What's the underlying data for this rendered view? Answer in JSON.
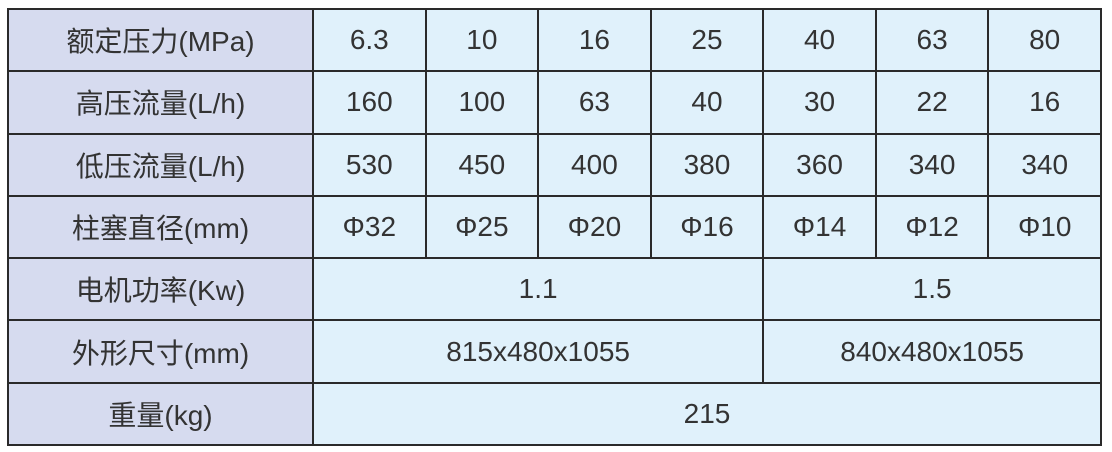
{
  "rows": [
    {
      "label": "额定压力(MPa)",
      "values": [
        "6.3",
        "10",
        "16",
        "25",
        "40",
        "63",
        "80"
      ]
    },
    {
      "label": "高压流量(L/h)",
      "values": [
        "160",
        "100",
        "63",
        "40",
        "30",
        "22",
        "16"
      ]
    },
    {
      "label": "低压流量(L/h)",
      "values": [
        "530",
        "450",
        "400",
        "380",
        "360",
        "340",
        "340"
      ]
    },
    {
      "label": "柱塞直径(mm)",
      "values": [
        "Φ32",
        "Φ25",
        "Φ20",
        "Φ16",
        "Φ14",
        "Φ12",
        "Φ10"
      ]
    }
  ],
  "motor_power": {
    "label": "电机功率(Kw)",
    "values": [
      "1.1",
      "1.5"
    ]
  },
  "dimensions": {
    "label": "外形尺寸(mm)",
    "values": [
      "815x480x1055",
      "840x480x1055"
    ]
  },
  "weight": {
    "label": "重量(kg)",
    "value": "215"
  },
  "colors": {
    "header_bg": "#d6dbef",
    "cell_bg": "#e0f1fb",
    "border": "#2a2a2a",
    "text": "#333333"
  }
}
